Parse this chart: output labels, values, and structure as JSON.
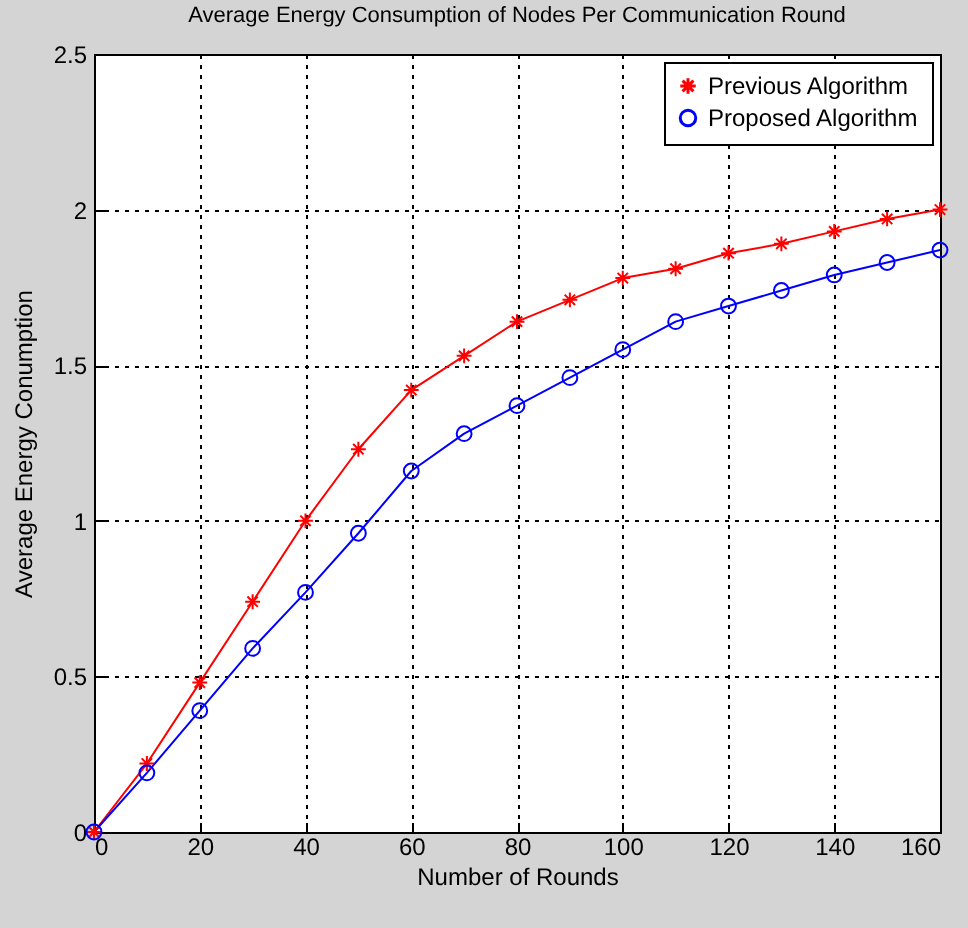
{
  "chart_data": {
    "type": "line",
    "title": "Average Energy Consumption of Nodes Per Communication Round",
    "xlabel": "Number of Rounds",
    "ylabel": "Average Energy Conumption",
    "x": [
      0,
      10,
      20,
      30,
      40,
      50,
      60,
      70,
      80,
      90,
      100,
      110,
      120,
      130,
      140,
      150,
      160
    ],
    "series": [
      {
        "name": "Previous Algorithm",
        "color": "#ff0000",
        "marker": "cross",
        "values": [
          0,
          0.22,
          0.48,
          0.74,
          1.0,
          1.23,
          1.42,
          1.53,
          1.64,
          1.71,
          1.78,
          1.81,
          1.86,
          1.89,
          1.93,
          1.97,
          2.0
        ]
      },
      {
        "name": "Proposed Algorithm",
        "color": "#0000ff",
        "marker": "circle",
        "values": [
          0,
          0.19,
          0.39,
          0.59,
          0.77,
          0.96,
          1.16,
          1.28,
          1.37,
          1.46,
          1.55,
          1.64,
          1.69,
          1.74,
          1.79,
          1.83,
          1.87
        ]
      }
    ],
    "xlim": [
      0,
      160
    ],
    "xticks": [
      0,
      20,
      40,
      60,
      80,
      100,
      120,
      140,
      160
    ],
    "ylim": [
      0,
      2.5
    ],
    "yticks": [
      0,
      0.5,
      1,
      1.5,
      2,
      2.5
    ],
    "grid": true,
    "legend": "top right",
    "line_style": "solid"
  }
}
